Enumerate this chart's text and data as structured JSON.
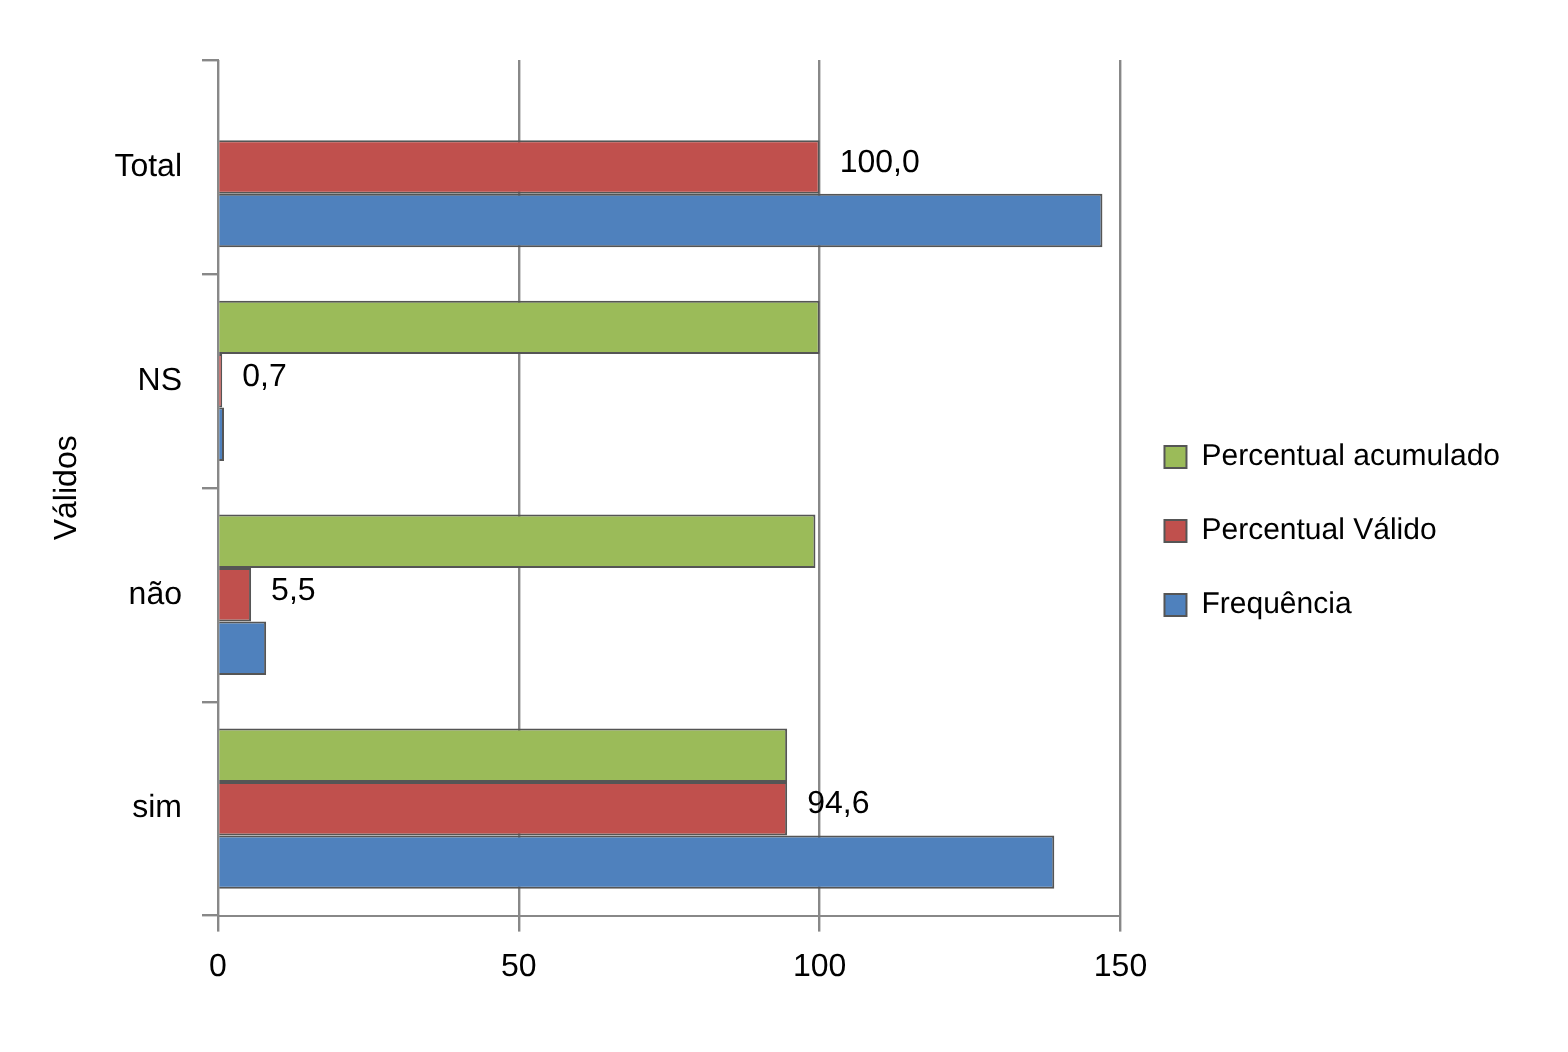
{
  "chart_data": {
    "type": "bar",
    "orientation": "horizontal",
    "ylabel": "Válidos",
    "categories": [
      "Total",
      "NS",
      "não",
      "sim"
    ],
    "series": [
      {
        "name": "Percentual acumulado",
        "color": "#9bbb59",
        "values": [
          null,
          100,
          99.3,
          94.6
        ]
      },
      {
        "name": "Percentual Válido",
        "color": "#c0504d",
        "values": [
          100,
          0.7,
          5.5,
          94.6
        ],
        "value_labels": [
          "100,0",
          "0,7",
          "5,5",
          "94,6"
        ]
      },
      {
        "name": "Frequência",
        "color": "#4f81bd",
        "values": [
          147,
          1,
          8,
          139
        ]
      }
    ],
    "xlim": [
      0,
      150
    ],
    "xticks": [
      0,
      50,
      100,
      150
    ],
    "grid": "x",
    "legend": "right"
  }
}
